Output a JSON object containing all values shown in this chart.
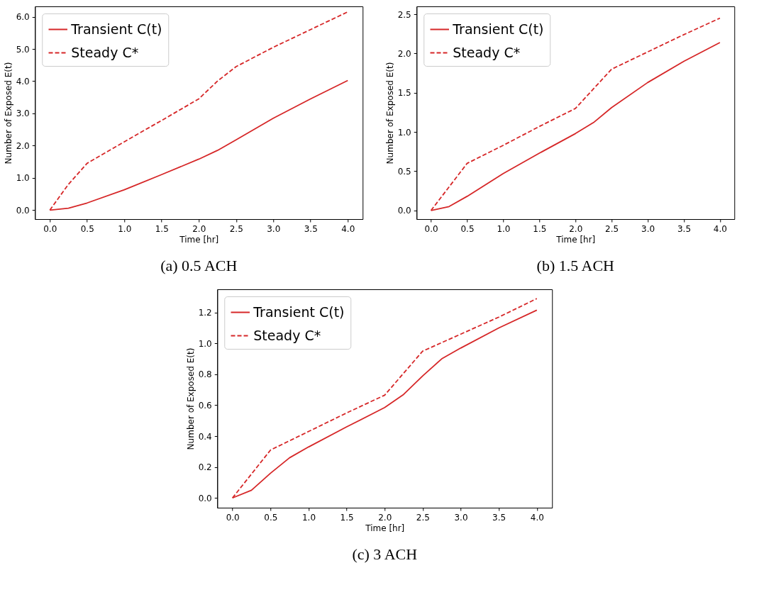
{
  "chart_data": [
    {
      "type": "line",
      "title": "(a) 0.5 ACH",
      "xlabel": "Time [hr]",
      "ylabel": "Number of Exposed E(t)",
      "legend": "top left",
      "grid": false,
      "xlim": [
        -0.2,
        4.2
      ],
      "ylim": [
        -0.28,
        6.32
      ],
      "xticks": [
        {
          "value": 0,
          "label": "0.0"
        },
        {
          "value": 0.5,
          "label": "0.5"
        },
        {
          "value": 1,
          "label": "1.0"
        },
        {
          "value": 1.5,
          "label": "1.5"
        },
        {
          "value": 2,
          "label": "2.0"
        },
        {
          "value": 2.5,
          "label": "2.5"
        },
        {
          "value": 3,
          "label": "3.0"
        },
        {
          "value": 3.5,
          "label": "3.5"
        },
        {
          "value": 4,
          "label": "4.0"
        }
      ],
      "yticks": [
        {
          "value": 0,
          "label": "0.0"
        },
        {
          "value": 1,
          "label": "1.0"
        },
        {
          "value": 2,
          "label": "2.0"
        },
        {
          "value": 3,
          "label": "3.0"
        },
        {
          "value": 4,
          "label": "4.0"
        },
        {
          "value": 5,
          "label": "5.0"
        },
        {
          "value": 6,
          "label": "6.0"
        }
      ],
      "series": [
        {
          "name": "Transient C(t)",
          "color": "#d62728",
          "line_style": "solid",
          "x": [
            0,
            0.25,
            0.5,
            1.0,
            1.5,
            2.0,
            2.25,
            2.5,
            3.0,
            3.5,
            4.0
          ],
          "values": [
            0,
            0.06,
            0.22,
            0.63,
            1.1,
            1.58,
            1.85,
            2.18,
            2.85,
            3.45,
            4.02
          ]
        },
        {
          "name": "Steady C*",
          "color": "#d62728",
          "line_style": "dashed",
          "x": [
            0,
            0.25,
            0.5,
            1.0,
            1.5,
            2.0,
            2.25,
            2.5,
            3.0,
            3.5,
            4.0
          ],
          "values": [
            0,
            0.8,
            1.45,
            2.12,
            2.78,
            3.45,
            4.0,
            4.45,
            5.05,
            5.6,
            6.15
          ]
        }
      ]
    },
    {
      "type": "line",
      "title": "(b) 1.5 ACH",
      "xlabel": "Time [hr]",
      "ylabel": "Number of Exposed E(t)",
      "legend": "top left",
      "grid": false,
      "xlim": [
        -0.2,
        4.2
      ],
      "ylim": [
        -0.11,
        2.6
      ],
      "xticks": [
        {
          "value": 0,
          "label": "0.0"
        },
        {
          "value": 0.5,
          "label": "0.5"
        },
        {
          "value": 1,
          "label": "1.0"
        },
        {
          "value": 1.5,
          "label": "1.5"
        },
        {
          "value": 2,
          "label": "2.0"
        },
        {
          "value": 2.5,
          "label": "2.5"
        },
        {
          "value": 3,
          "label": "3.0"
        },
        {
          "value": 3.5,
          "label": "3.5"
        },
        {
          "value": 4,
          "label": "4.0"
        }
      ],
      "yticks": [
        {
          "value": 0,
          "label": "0.0"
        },
        {
          "value": 0.5,
          "label": "0.5"
        },
        {
          "value": 1,
          "label": "1.0"
        },
        {
          "value": 1.5,
          "label": "1.5"
        },
        {
          "value": 2,
          "label": "2.0"
        },
        {
          "value": 2.5,
          "label": "2.5"
        }
      ],
      "series": [
        {
          "name": "Transient C(t)",
          "color": "#d62728",
          "line_style": "solid",
          "x": [
            0,
            0.25,
            0.5,
            1.0,
            1.5,
            2.0,
            2.25,
            2.5,
            3.0,
            3.5,
            4.0
          ],
          "values": [
            0,
            0.05,
            0.18,
            0.47,
            0.73,
            0.98,
            1.12,
            1.31,
            1.63,
            1.9,
            2.14
          ]
        },
        {
          "name": "Steady C*",
          "color": "#d62728",
          "line_style": "dashed",
          "x": [
            0,
            0.5,
            1.0,
            1.5,
            2.0,
            2.5,
            3.0,
            3.5,
            4.0
          ],
          "values": [
            0,
            0.6,
            0.83,
            1.07,
            1.3,
            1.8,
            2.02,
            2.24,
            2.45
          ]
        }
      ]
    },
    {
      "type": "line",
      "title": "(c) 3 ACH",
      "xlabel": "Time [hr]",
      "ylabel": "Number of Exposed E(t)",
      "legend": "top left",
      "grid": false,
      "xlim": [
        -0.2,
        4.2
      ],
      "ylim": [
        -0.063,
        1.35
      ],
      "xticks": [
        {
          "value": 0,
          "label": "0.0"
        },
        {
          "value": 0.5,
          "label": "0.5"
        },
        {
          "value": 1,
          "label": "1.0"
        },
        {
          "value": 1.5,
          "label": "1.5"
        },
        {
          "value": 2,
          "label": "2.0"
        },
        {
          "value": 2.5,
          "label": "2.5"
        },
        {
          "value": 3,
          "label": "3.0"
        },
        {
          "value": 3.5,
          "label": "3.5"
        },
        {
          "value": 4,
          "label": "4.0"
        }
      ],
      "yticks": [
        {
          "value": 0,
          "label": "0.0"
        },
        {
          "value": 0.2,
          "label": "0.2"
        },
        {
          "value": 0.4,
          "label": "0.4"
        },
        {
          "value": 0.6,
          "label": "0.6"
        },
        {
          "value": 0.8,
          "label": "0.8"
        },
        {
          "value": 1,
          "label": "1.0"
        },
        {
          "value": 1.2,
          "label": "1.2"
        }
      ],
      "series": [
        {
          "name": "Transient C(t)",
          "color": "#d62728",
          "line_style": "solid",
          "x": [
            0,
            0.25,
            0.5,
            0.75,
            1.0,
            1.5,
            2.0,
            2.25,
            2.5,
            2.75,
            3.0,
            3.5,
            4.0
          ],
          "values": [
            0,
            0.05,
            0.16,
            0.26,
            0.33,
            0.46,
            0.585,
            0.67,
            0.79,
            0.9,
            0.97,
            1.1,
            1.215
          ]
        },
        {
          "name": "Steady C*",
          "color": "#d62728",
          "line_style": "dashed",
          "x": [
            0,
            0.5,
            1.0,
            1.5,
            2.0,
            2.5,
            3.0,
            3.5,
            4.0
          ],
          "values": [
            0,
            0.31,
            0.43,
            0.55,
            0.665,
            0.95,
            1.06,
            1.17,
            1.29
          ]
        }
      ]
    }
  ]
}
